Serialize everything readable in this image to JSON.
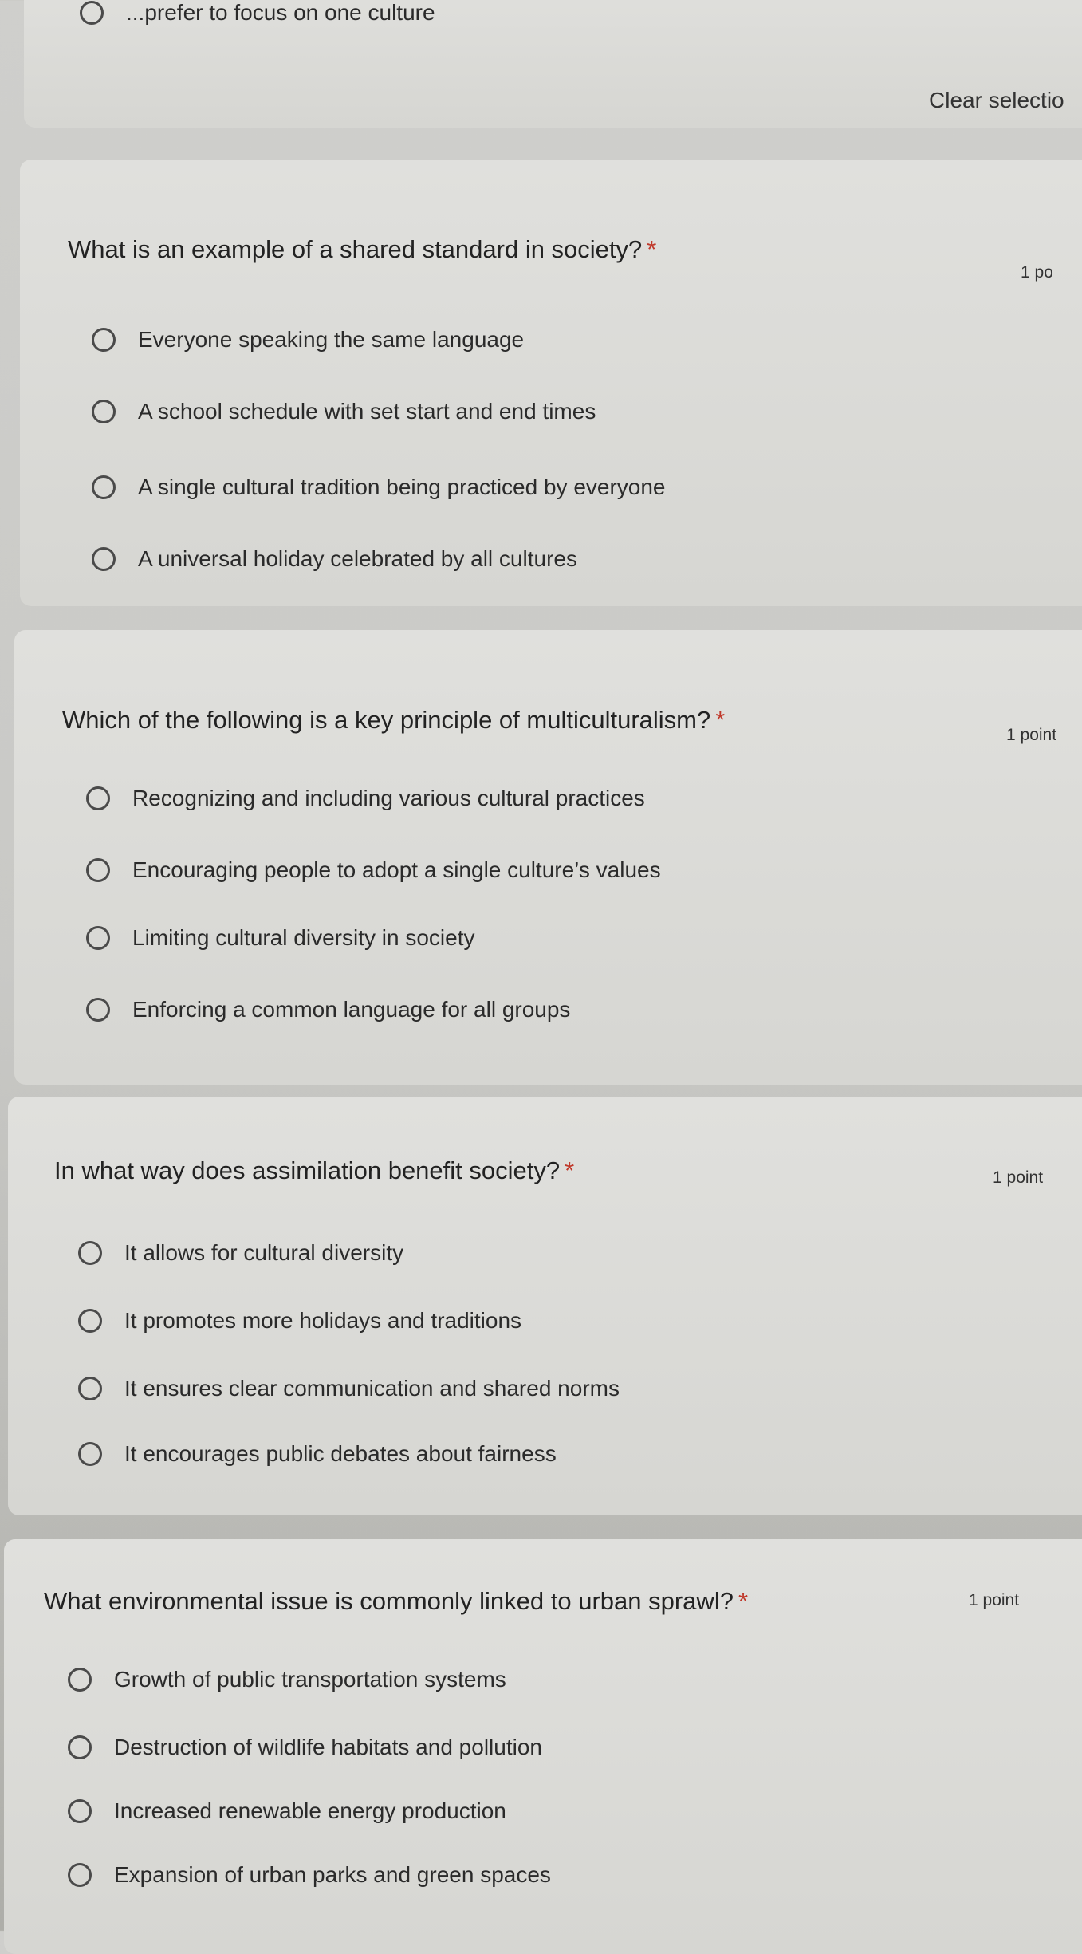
{
  "previous_question": {
    "partial_option": "...prefer to focus on one culture",
    "clear_selection": "Clear selectio"
  },
  "questions": [
    {
      "title": "What is an example of a shared standard in society?",
      "required": "*",
      "points": "1 po",
      "options": [
        "Everyone speaking the same language",
        "A school schedule with set start and end times",
        "A single cultural tradition being practiced by everyone",
        "A universal holiday celebrated by all cultures"
      ]
    },
    {
      "title": "Which of the following is a key principle of multiculturalism?",
      "required": "*",
      "points": "1 point",
      "options": [
        "Recognizing and including various cultural practices",
        "Encouraging people to adopt a single culture’s values",
        "Limiting cultural diversity in society",
        "Enforcing a common language for all groups"
      ]
    },
    {
      "title": "In what way does assimilation benefit society?",
      "required": "*",
      "points": "1 point",
      "options": [
        "It allows for cultural diversity",
        "It promotes more holidays and traditions",
        "It ensures clear communication and shared norms",
        "It encourages public debates about fairness"
      ]
    },
    {
      "title": "What environmental issue is commonly linked to urban sprawl?",
      "required": "*",
      "points": "1 point",
      "options": [
        "Growth of public transportation systems",
        "Destruction of wildlife habitats and pollution",
        "Increased renewable energy production",
        "Expansion of urban parks and green spaces"
      ]
    }
  ]
}
